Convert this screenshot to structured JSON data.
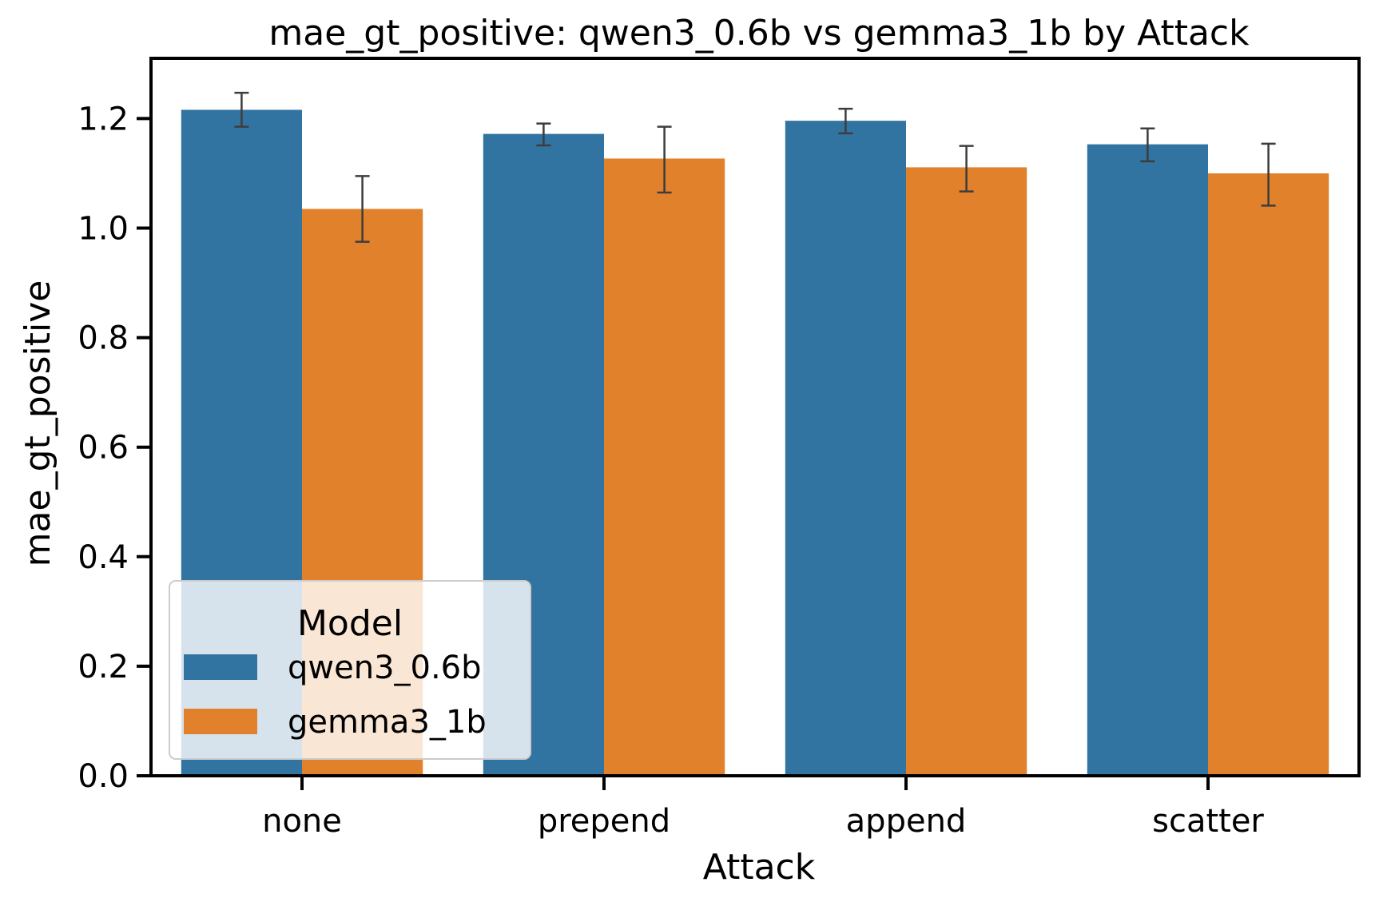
{
  "chart_data": {
    "type": "bar",
    "title": "mae_gt_positive: qwen3_0.6b vs gemma3_1b by Attack",
    "xlabel": "Attack",
    "ylabel": "mae_gt_positive",
    "ylim": [
      0,
      1.31
    ],
    "yticks": [
      0.0,
      0.2,
      0.4,
      0.6,
      0.8,
      1.0,
      1.2
    ],
    "ytick_labels": [
      "0.0",
      "0.2",
      "0.4",
      "0.6",
      "0.8",
      "1.0",
      "1.2"
    ],
    "categories": [
      "none",
      "prepend",
      "append",
      "scatter"
    ],
    "grid": false,
    "legend": {
      "title": "Model",
      "placement": "lower-left"
    },
    "series": [
      {
        "name": "qwen3_0.6b",
        "color": "#3274a1",
        "values": [
          1.216,
          1.172,
          1.196,
          1.153
        ],
        "error_low": [
          1.185,
          1.151,
          1.173,
          1.122
        ],
        "error_high": [
          1.247,
          1.191,
          1.218,
          1.182
        ]
      },
      {
        "name": "gemma3_1b",
        "color": "#e1812c",
        "values": [
          1.035,
          1.127,
          1.111,
          1.1
        ],
        "error_low": [
          0.975,
          1.065,
          1.067,
          1.041
        ],
        "error_high": [
          1.095,
          1.185,
          1.15,
          1.154
        ]
      }
    ]
  }
}
